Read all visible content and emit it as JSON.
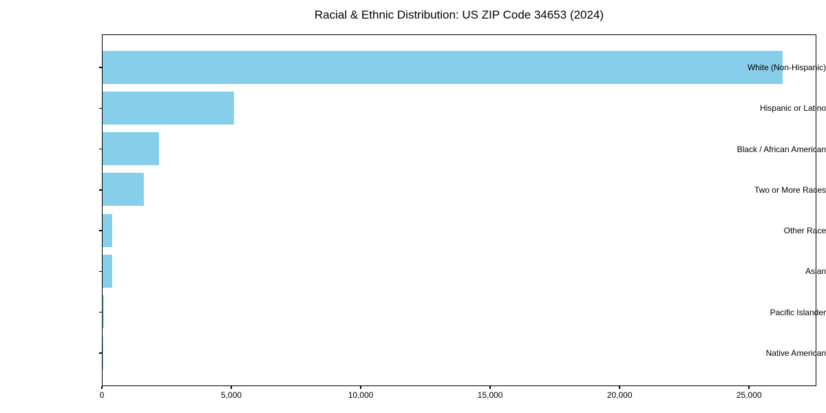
{
  "chart_data": {
    "type": "bar",
    "orientation": "horizontal",
    "title": "Racial & Ethnic Distribution: US ZIP Code 34653 (2024)",
    "xlabel": "",
    "ylabel": "",
    "categories": [
      "White (Non-Hispanic)",
      "Hispanic or Latino",
      "Black / African American",
      "Two or More Races",
      "Other Race",
      "Asian",
      "Pacific Islander",
      "Native American"
    ],
    "values": [
      26280,
      5070,
      2180,
      1600,
      380,
      370,
      50,
      25
    ],
    "xlim": [
      0,
      27600
    ],
    "x_ticks": [
      0,
      5000,
      10000,
      15000,
      20000,
      25000
    ],
    "x_tick_labels": [
      "0",
      "5,000",
      "10,000",
      "15,000",
      "20,000",
      "25,000"
    ],
    "grid": false,
    "legend": "none",
    "bar_color": "#87ceeb",
    "spine_color": "#000000"
  }
}
